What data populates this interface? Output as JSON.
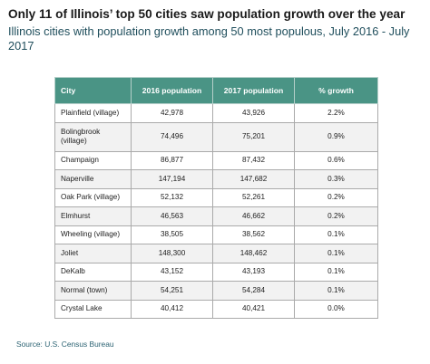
{
  "title": "Only 11 of Illinois’ top 50 cities saw population growth over the year",
  "subtitle": "Illinois cities with population growth among 50 most populous, July 2016 - July 2017",
  "source": "Source: U.S. Census Bureau",
  "colors": {
    "header_bg": "#4a9485",
    "header_text": "#ffffff",
    "title": "#1a1a1a",
    "subtitle": "#1f4e5c",
    "row_alt": "#f2f2f2"
  },
  "chart_data": {
    "type": "table",
    "columns": [
      "City",
      "2016 population",
      "2017 population",
      "% growth"
    ],
    "rows": [
      [
        "Plainfield (village)",
        "42,978",
        "43,926",
        "2.2%"
      ],
      [
        "Bolingbrook (village)",
        "74,496",
        "75,201",
        "0.9%"
      ],
      [
        "Champaign",
        "86,877",
        "87,432",
        "0.6%"
      ],
      [
        "Naperville",
        "147,194",
        "147,682",
        "0.3%"
      ],
      [
        "Oak Park (village)",
        "52,132",
        "52,261",
        "0.2%"
      ],
      [
        "Elmhurst",
        "46,563",
        "46,662",
        "0.2%"
      ],
      [
        "Wheeling (village)",
        "38,505",
        "38,562",
        "0.1%"
      ],
      [
        "Joliet",
        "148,300",
        "148,462",
        "0.1%"
      ],
      [
        "DeKalb",
        "43,152",
        "43,193",
        "0.1%"
      ],
      [
        "Normal (town)",
        "54,251",
        "54,284",
        "0.1%"
      ],
      [
        "Crystal Lake",
        "40,412",
        "40,421",
        "0.0%"
      ]
    ]
  }
}
